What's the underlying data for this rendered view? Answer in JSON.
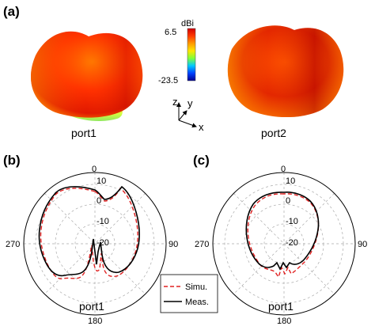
{
  "panel_labels": {
    "a": "(a)",
    "b": "(b)",
    "c": "(c)"
  },
  "patterns_3d": [
    {
      "port_label": "port1"
    },
    {
      "port_label": "port2"
    }
  ],
  "colorbar": {
    "unit": "dBi",
    "max_label": "6.5",
    "min_label": "-23.5",
    "colors": [
      "#d00000",
      "#ff3a00",
      "#ff9a00",
      "#ffe600",
      "#7fff3a",
      "#00c8ff",
      "#0040ff",
      "#00008f"
    ]
  },
  "axes_triad": {
    "z": "z",
    "y": "y",
    "x": "x"
  },
  "polar_plots": [
    {
      "port_label": "port1",
      "angle_labels": {
        "top": "0",
        "right": "90",
        "bottom": "180",
        "left": "270"
      },
      "radial_labels": [
        "10",
        "0",
        "-10",
        "-20"
      ],
      "series": [
        {
          "name": "Simu.",
          "color": "#e02020",
          "style": "dashed"
        },
        {
          "name": "Meas.",
          "color": "#000000",
          "style": "solid"
        }
      ]
    },
    {
      "port_label": "port1",
      "angle_labels": {
        "top": "0",
        "right": "90",
        "bottom": "180",
        "left": "270"
      },
      "radial_labels": [
        "10",
        "0",
        "-10",
        "-20"
      ],
      "series": [
        {
          "name": "Simu.",
          "color": "#e02020",
          "style": "dashed"
        },
        {
          "name": "Meas.",
          "color": "#000000",
          "style": "solid"
        }
      ]
    }
  ],
  "legend": {
    "simu": "Simu.",
    "meas": "Meas."
  }
}
